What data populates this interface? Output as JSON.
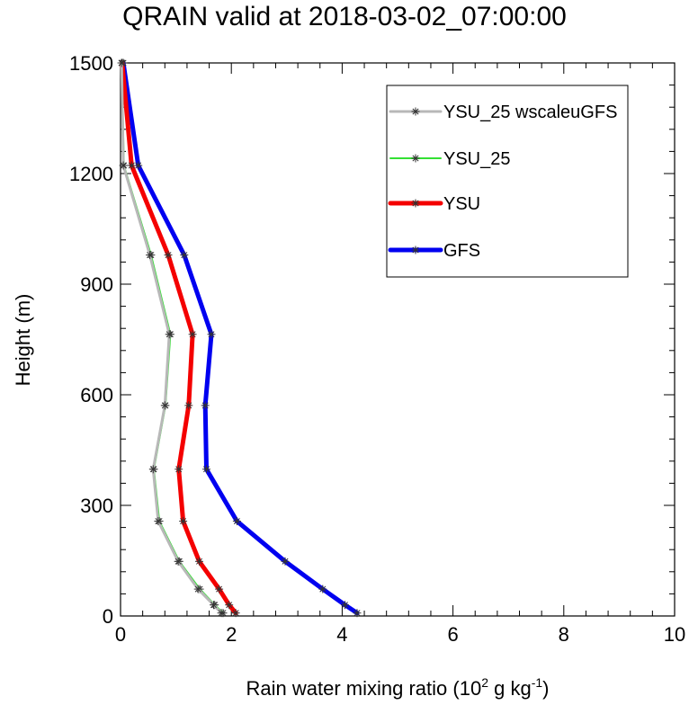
{
  "chart_data": {
    "type": "line",
    "title": "QRAIN valid at 2018-03-02_07:00:00",
    "xlabel_parts": [
      "Rain water mixing ratio (10",
      "2",
      " g kg",
      "-1",
      ")"
    ],
    "ylabel": "Height (m)",
    "xlim": [
      0,
      10
    ],
    "ylim": [
      0,
      1500
    ],
    "x_ticks": [
      0,
      2,
      4,
      6,
      8,
      10
    ],
    "y_ticks": [
      0,
      300,
      600,
      900,
      1200,
      1500
    ],
    "legend_position": "top-right",
    "series": [
      {
        "name": "YSU_25 wscaleuGFS",
        "color": "#b8b8b8",
        "x": [
          1.82,
          1.68,
          1.4,
          1.04,
          0.68,
          0.59,
          0.8,
          0.88,
          0.53,
          0.05,
          0.02
        ],
        "y": [
          8,
          30,
          73,
          148,
          257,
          398,
          571,
          764,
          979,
          1222,
          1500
        ]
      },
      {
        "name": "YSU_25",
        "color": "#33e033",
        "x": [
          1.85,
          1.7,
          1.43,
          1.06,
          0.7,
          0.6,
          0.81,
          0.9,
          0.55,
          0.06,
          0.02
        ],
        "y": [
          8,
          30,
          73,
          148,
          257,
          398,
          571,
          764,
          979,
          1222,
          1500
        ]
      },
      {
        "name": "YSU",
        "color": "#f40000",
        "x": [
          2.08,
          1.96,
          1.78,
          1.42,
          1.13,
          1.05,
          1.23,
          1.3,
          0.86,
          0.2,
          0.03
        ],
        "y": [
          8,
          30,
          73,
          148,
          257,
          398,
          571,
          764,
          979,
          1222,
          1500
        ]
      },
      {
        "name": "GFS",
        "color": "#0000f0",
        "x": [
          4.27,
          4.05,
          3.65,
          2.97,
          2.1,
          1.55,
          1.53,
          1.64,
          1.15,
          0.32,
          0.05
        ],
        "y": [
          8,
          30,
          73,
          148,
          257,
          398,
          571,
          764,
          979,
          1222,
          1500
        ]
      }
    ]
  }
}
